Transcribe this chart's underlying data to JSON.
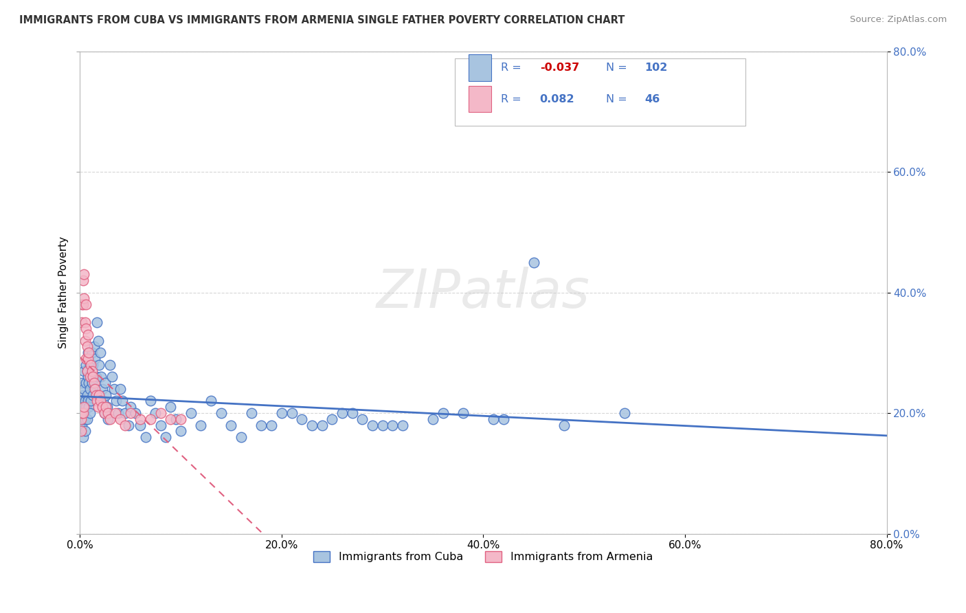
{
  "title": "IMMIGRANTS FROM CUBA VS IMMIGRANTS FROM ARMENIA SINGLE FATHER POVERTY CORRELATION CHART",
  "source": "Source: ZipAtlas.com",
  "ylabel": "Single Father Poverty",
  "legend_label1": "Immigrants from Cuba",
  "legend_label2": "Immigrants from Armenia",
  "r1": -0.037,
  "n1": 102,
  "r2": 0.082,
  "n2": 46,
  "color_cuba": "#a8c4e0",
  "color_armenia": "#f4b8c8",
  "color_cuba_line": "#4472C4",
  "color_armenia_line": "#E06080",
  "xlim": [
    0.0,
    0.8
  ],
  "ylim": [
    0.0,
    0.8
  ],
  "cuba_x": [
    0.001,
    0.001,
    0.001,
    0.002,
    0.002,
    0.002,
    0.003,
    0.003,
    0.003,
    0.003,
    0.004,
    0.004,
    0.004,
    0.005,
    0.005,
    0.005,
    0.006,
    0.006,
    0.006,
    0.007,
    0.007,
    0.007,
    0.008,
    0.008,
    0.008,
    0.009,
    0.009,
    0.01,
    0.01,
    0.01,
    0.011,
    0.011,
    0.012,
    0.012,
    0.013,
    0.013,
    0.014,
    0.015,
    0.015,
    0.016,
    0.017,
    0.018,
    0.019,
    0.02,
    0.021,
    0.022,
    0.023,
    0.024,
    0.025,
    0.026,
    0.027,
    0.028,
    0.03,
    0.032,
    0.034,
    0.036,
    0.038,
    0.04,
    0.042,
    0.045,
    0.048,
    0.05,
    0.055,
    0.06,
    0.065,
    0.07,
    0.075,
    0.08,
    0.085,
    0.09,
    0.095,
    0.1,
    0.11,
    0.12,
    0.13,
    0.14,
    0.15,
    0.16,
    0.17,
    0.18,
    0.2,
    0.22,
    0.24,
    0.26,
    0.28,
    0.32,
    0.36,
    0.42,
    0.48,
    0.54,
    0.3,
    0.35,
    0.38,
    0.31,
    0.41,
    0.29,
    0.27,
    0.25,
    0.23,
    0.21,
    0.19,
    0.45
  ],
  "cuba_y": [
    0.22,
    0.19,
    0.17,
    0.25,
    0.2,
    0.18,
    0.23,
    0.21,
    0.19,
    0.16,
    0.27,
    0.24,
    0.2,
    0.22,
    0.19,
    0.17,
    0.28,
    0.25,
    0.21,
    0.27,
    0.23,
    0.19,
    0.3,
    0.26,
    0.22,
    0.25,
    0.21,
    0.28,
    0.24,
    0.2,
    0.26,
    0.22,
    0.3,
    0.25,
    0.28,
    0.23,
    0.31,
    0.29,
    0.24,
    0.26,
    0.35,
    0.32,
    0.28,
    0.3,
    0.26,
    0.24,
    0.22,
    0.2,
    0.25,
    0.23,
    0.21,
    0.19,
    0.28,
    0.26,
    0.24,
    0.22,
    0.2,
    0.24,
    0.22,
    0.2,
    0.18,
    0.21,
    0.2,
    0.18,
    0.16,
    0.22,
    0.2,
    0.18,
    0.16,
    0.21,
    0.19,
    0.17,
    0.2,
    0.18,
    0.22,
    0.2,
    0.18,
    0.16,
    0.2,
    0.18,
    0.2,
    0.19,
    0.18,
    0.2,
    0.19,
    0.18,
    0.2,
    0.19,
    0.18,
    0.2,
    0.18,
    0.19,
    0.2,
    0.18,
    0.19,
    0.18,
    0.2,
    0.19,
    0.18,
    0.2,
    0.18,
    0.45
  ],
  "armenia_x": [
    0.001,
    0.001,
    0.002,
    0.002,
    0.002,
    0.003,
    0.003,
    0.003,
    0.004,
    0.004,
    0.004,
    0.005,
    0.005,
    0.006,
    0.006,
    0.006,
    0.007,
    0.007,
    0.008,
    0.008,
    0.009,
    0.01,
    0.011,
    0.012,
    0.013,
    0.014,
    0.015,
    0.016,
    0.017,
    0.018,
    0.019,
    0.02,
    0.022,
    0.024,
    0.026,
    0.028,
    0.03,
    0.035,
    0.04,
    0.045,
    0.05,
    0.06,
    0.07,
    0.08,
    0.09,
    0.1
  ],
  "armenia_y": [
    0.19,
    0.17,
    0.38,
    0.35,
    0.2,
    0.42,
    0.38,
    0.2,
    0.43,
    0.39,
    0.21,
    0.35,
    0.32,
    0.38,
    0.34,
    0.29,
    0.31,
    0.27,
    0.33,
    0.29,
    0.3,
    0.26,
    0.28,
    0.27,
    0.26,
    0.25,
    0.24,
    0.23,
    0.22,
    0.21,
    0.23,
    0.22,
    0.21,
    0.2,
    0.21,
    0.2,
    0.19,
    0.2,
    0.19,
    0.18,
    0.2,
    0.19,
    0.19,
    0.2,
    0.19,
    0.19
  ]
}
